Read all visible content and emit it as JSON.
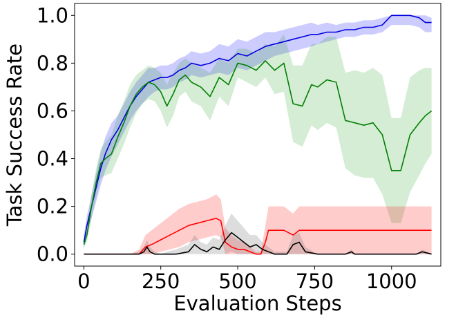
{
  "chart_data": {
    "type": "line",
    "title": "",
    "xlabel": "Evaluation Steps",
    "ylabel": "Task Success Rate",
    "xlim": [
      -30,
      1160
    ],
    "ylim": [
      -0.05,
      1.05
    ],
    "xticks": [
      0,
      250,
      500,
      750,
      1000
    ],
    "yticks": [
      0.0,
      0.2,
      0.4,
      0.6,
      0.8,
      1.0
    ],
    "xtick_labels": [
      "0",
      "250",
      "500",
      "750",
      "1000"
    ],
    "ytick_labels": [
      "0.0",
      "0.2",
      "0.4",
      "0.6",
      "0.8",
      "1.0"
    ],
    "grid": false,
    "legend": "none",
    "series": [
      {
        "color": "#0000dd",
        "band_color": "#0000ff",
        "x": [
          0,
          10,
          25,
          40,
          55,
          70,
          90,
          110,
          130,
          150,
          170,
          190,
          210,
          230,
          250,
          270,
          290,
          310,
          330,
          350,
          380,
          410,
          440,
          470,
          500,
          530,
          560,
          590,
          620,
          650,
          680,
          710,
          740,
          760,
          790,
          820,
          850,
          880,
          910,
          940,
          970,
          1000,
          1030,
          1060,
          1090,
          1110,
          1130
        ],
        "y": [
          0.05,
          0.12,
          0.2,
          0.28,
          0.36,
          0.42,
          0.48,
          0.52,
          0.57,
          0.62,
          0.66,
          0.69,
          0.72,
          0.73,
          0.74,
          0.74,
          0.75,
          0.77,
          0.78,
          0.8,
          0.79,
          0.8,
          0.82,
          0.81,
          0.84,
          0.83,
          0.85,
          0.87,
          0.88,
          0.89,
          0.9,
          0.91,
          0.92,
          0.92,
          0.93,
          0.93,
          0.94,
          0.94,
          0.95,
          0.95,
          0.96,
          1.0,
          1.0,
          1.0,
          0.99,
          0.97,
          0.97
        ],
        "lower": [
          0.02,
          0.08,
          0.15,
          0.22,
          0.29,
          0.35,
          0.41,
          0.46,
          0.51,
          0.56,
          0.6,
          0.63,
          0.66,
          0.68,
          0.69,
          0.69,
          0.7,
          0.72,
          0.73,
          0.75,
          0.74,
          0.75,
          0.76,
          0.75,
          0.78,
          0.77,
          0.79,
          0.81,
          0.83,
          0.84,
          0.85,
          0.86,
          0.87,
          0.88,
          0.89,
          0.9,
          0.91,
          0.91,
          0.92,
          0.92,
          0.93,
          0.96,
          0.96,
          0.96,
          0.95,
          0.93,
          0.93
        ],
        "upper": [
          0.08,
          0.16,
          0.25,
          0.34,
          0.43,
          0.49,
          0.55,
          0.58,
          0.63,
          0.68,
          0.72,
          0.75,
          0.78,
          0.78,
          0.79,
          0.79,
          0.8,
          0.82,
          0.83,
          0.85,
          0.84,
          0.85,
          0.88,
          0.87,
          0.9,
          0.89,
          0.91,
          0.93,
          0.93,
          0.94,
          0.95,
          0.96,
          0.97,
          0.96,
          0.97,
          0.96,
          0.97,
          0.97,
          0.98,
          0.98,
          0.99,
          1.0,
          1.0,
          1.0,
          1.0,
          1.0,
          0.99
        ]
      },
      {
        "color": "#008000",
        "band_color": "#2ca02c",
        "x": [
          0,
          10,
          25,
          40,
          55,
          70,
          90,
          110,
          130,
          150,
          170,
          190,
          210,
          230,
          250,
          270,
          290,
          310,
          330,
          350,
          380,
          410,
          440,
          470,
          500,
          530,
          560,
          590,
          620,
          650,
          680,
          710,
          740,
          760,
          790,
          820,
          850,
          880,
          910,
          940,
          970,
          1000,
          1030,
          1060,
          1090,
          1110,
          1130
        ],
        "y": [
          0.04,
          0.08,
          0.2,
          0.3,
          0.38,
          0.4,
          0.42,
          0.49,
          0.55,
          0.62,
          0.67,
          0.7,
          0.72,
          0.71,
          0.68,
          0.62,
          0.67,
          0.73,
          0.75,
          0.72,
          0.7,
          0.66,
          0.74,
          0.71,
          0.8,
          0.79,
          0.77,
          0.81,
          0.77,
          0.8,
          0.63,
          0.62,
          0.71,
          0.7,
          0.73,
          0.72,
          0.56,
          0.55,
          0.54,
          0.55,
          0.5,
          0.35,
          0.35,
          0.5,
          0.55,
          0.58,
          0.6
        ],
        "lower": [
          0.03,
          0.05,
          0.15,
          0.24,
          0.32,
          0.33,
          0.34,
          0.4,
          0.46,
          0.53,
          0.59,
          0.63,
          0.65,
          0.64,
          0.6,
          0.53,
          0.58,
          0.66,
          0.68,
          0.64,
          0.62,
          0.56,
          0.66,
          0.62,
          0.74,
          0.72,
          0.7,
          0.74,
          0.67,
          0.68,
          0.47,
          0.45,
          0.54,
          0.52,
          0.55,
          0.53,
          0.36,
          0.33,
          0.32,
          0.32,
          0.25,
          0.13,
          0.13,
          0.26,
          0.33,
          0.38,
          0.42
        ],
        "upper": [
          0.06,
          0.11,
          0.25,
          0.36,
          0.44,
          0.47,
          0.5,
          0.58,
          0.64,
          0.71,
          0.75,
          0.77,
          0.79,
          0.78,
          0.76,
          0.71,
          0.76,
          0.8,
          0.82,
          0.8,
          0.78,
          0.76,
          0.82,
          0.8,
          0.86,
          0.86,
          0.84,
          0.88,
          0.87,
          0.92,
          0.79,
          0.79,
          0.88,
          0.88,
          0.91,
          0.91,
          0.76,
          0.77,
          0.76,
          0.78,
          0.75,
          0.57,
          0.57,
          0.74,
          0.77,
          0.78,
          0.78
        ]
      },
      {
        "color": "#ff0000",
        "band_color": "#ff0000",
        "x": [
          0,
          50,
          100,
          150,
          180,
          200,
          220,
          250,
          280,
          310,
          340,
          370,
          400,
          430,
          445,
          460,
          480,
          500,
          520,
          540,
          560,
          575,
          590,
          600,
          620,
          650,
          680,
          700,
          720,
          760,
          800,
          850,
          900,
          950,
          1000,
          1050,
          1100,
          1130
        ],
        "y": [
          0.0,
          0.0,
          0.0,
          0.0,
          0.0,
          0.03,
          0.04,
          0.06,
          0.08,
          0.1,
          0.12,
          0.13,
          0.14,
          0.15,
          0.14,
          0.05,
          0.03,
          0.02,
          0.02,
          0.01,
          0.0,
          0.0,
          0.05,
          0.1,
          0.1,
          0.1,
          0.08,
          0.1,
          0.1,
          0.1,
          0.1,
          0.1,
          0.1,
          0.1,
          0.1,
          0.1,
          0.1,
          0.1
        ],
        "lower": [
          0.0,
          0.0,
          0.0,
          0.0,
          0.0,
          0.0,
          0.0,
          0.01,
          0.02,
          0.03,
          0.05,
          0.06,
          0.07,
          0.08,
          0.07,
          0.0,
          0.0,
          0.0,
          0.0,
          0.0,
          0.0,
          0.0,
          0.0,
          0.0,
          0.0,
          0.0,
          0.0,
          0.0,
          0.0,
          0.0,
          0.0,
          0.0,
          0.0,
          0.0,
          0.0,
          0.0,
          0.0,
          0.0
        ],
        "upper": [
          0.0,
          0.0,
          0.0,
          0.0,
          0.02,
          0.08,
          0.1,
          0.13,
          0.16,
          0.19,
          0.21,
          0.22,
          0.23,
          0.25,
          0.23,
          0.11,
          0.08,
          0.06,
          0.05,
          0.03,
          0.01,
          0.01,
          0.12,
          0.2,
          0.2,
          0.2,
          0.17,
          0.2,
          0.2,
          0.2,
          0.2,
          0.2,
          0.2,
          0.2,
          0.2,
          0.2,
          0.2,
          0.2
        ]
      },
      {
        "color": "#000000",
        "band_color": "#555555",
        "x": [
          0,
          150,
          180,
          195,
          205,
          215,
          230,
          250,
          270,
          300,
          340,
          360,
          380,
          400,
          420,
          440,
          460,
          480,
          500,
          520,
          540,
          560,
          580,
          600,
          620,
          660,
          680,
          700,
          720,
          760,
          800,
          850,
          870,
          880,
          900,
          1000,
          1080,
          1100,
          1130
        ],
        "y": [
          0.0,
          0.0,
          0.0,
          0.01,
          0.03,
          0.01,
          0.0,
          0.0,
          0.0,
          0.0,
          0.01,
          0.04,
          0.02,
          0.01,
          0.03,
          0.02,
          0.06,
          0.09,
          0.07,
          0.05,
          0.03,
          0.04,
          0.02,
          0.01,
          0.0,
          0.0,
          0.04,
          0.05,
          0.01,
          0.0,
          0.0,
          0.0,
          0.01,
          0.0,
          0.0,
          0.0,
          0.0,
          0.01,
          0.0
        ],
        "lower": [
          0.0,
          0.0,
          0.0,
          0.0,
          0.0,
          0.0,
          0.0,
          0.0,
          0.0,
          0.0,
          0.0,
          0.0,
          0.0,
          0.0,
          0.0,
          0.0,
          0.0,
          0.01,
          0.0,
          0.0,
          0.0,
          0.0,
          0.0,
          0.0,
          0.0,
          0.0,
          0.0,
          0.0,
          0.0,
          0.0,
          0.0,
          0.0,
          0.0,
          0.0,
          0.0,
          0.0,
          0.0,
          0.0,
          0.0
        ],
        "upper": [
          0.0,
          0.0,
          0.01,
          0.03,
          0.06,
          0.03,
          0.01,
          0.0,
          0.01,
          0.02,
          0.04,
          0.08,
          0.05,
          0.04,
          0.07,
          0.06,
          0.12,
          0.17,
          0.14,
          0.11,
          0.08,
          0.08,
          0.05,
          0.03,
          0.01,
          0.01,
          0.08,
          0.09,
          0.03,
          0.0,
          0.0,
          0.0,
          0.02,
          0.0,
          0.0,
          0.0,
          0.0,
          0.02,
          0.0
        ]
      }
    ]
  }
}
